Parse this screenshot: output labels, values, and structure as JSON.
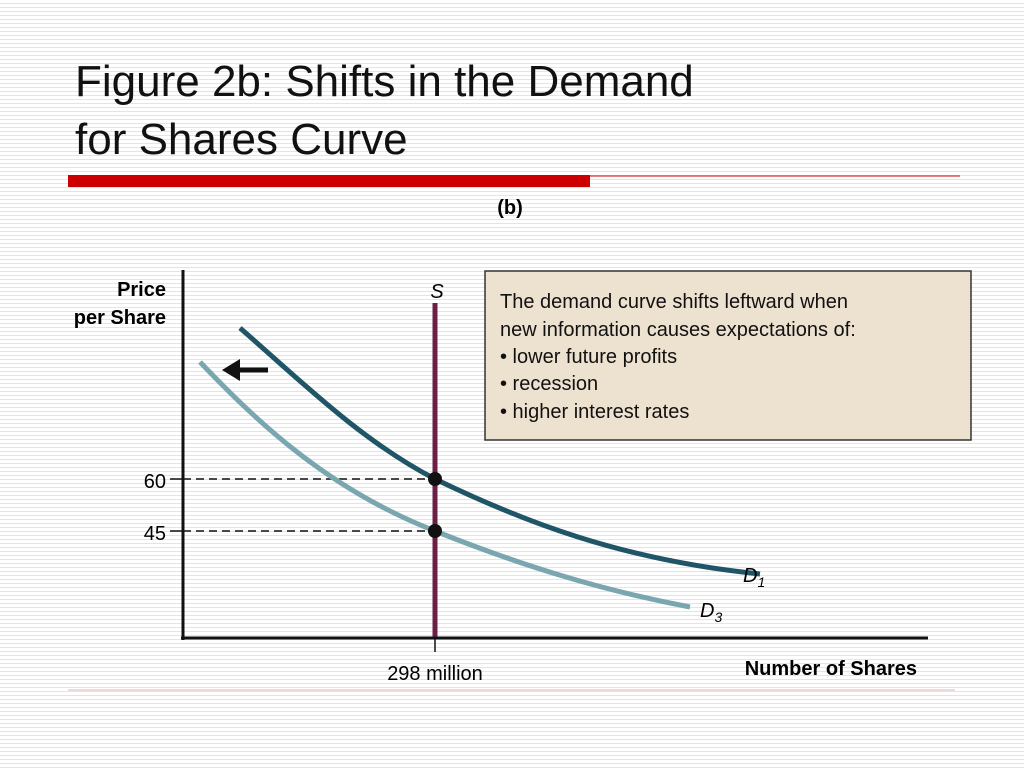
{
  "header": {
    "title_line1": "Figure 2b:  Shifts in the Demand",
    "title_line2": "for Shares Curve"
  },
  "figure": {
    "panel": "(b)",
    "y_axis_label": [
      "Price",
      "per Share"
    ],
    "x_axis_label": "Number of Shares",
    "y_ticks": [
      "60",
      "45"
    ],
    "x_tick": "298 million",
    "supply_label": "S",
    "demand_labels": [
      {
        "letter": "D",
        "sub": "1"
      },
      {
        "letter": "D",
        "sub": "3"
      }
    ],
    "note": [
      "The demand curve shifts leftward when",
      "new information causes expectations of:",
      "• lower future profits",
      "• recession",
      "• higher interest rates"
    ]
  }
}
